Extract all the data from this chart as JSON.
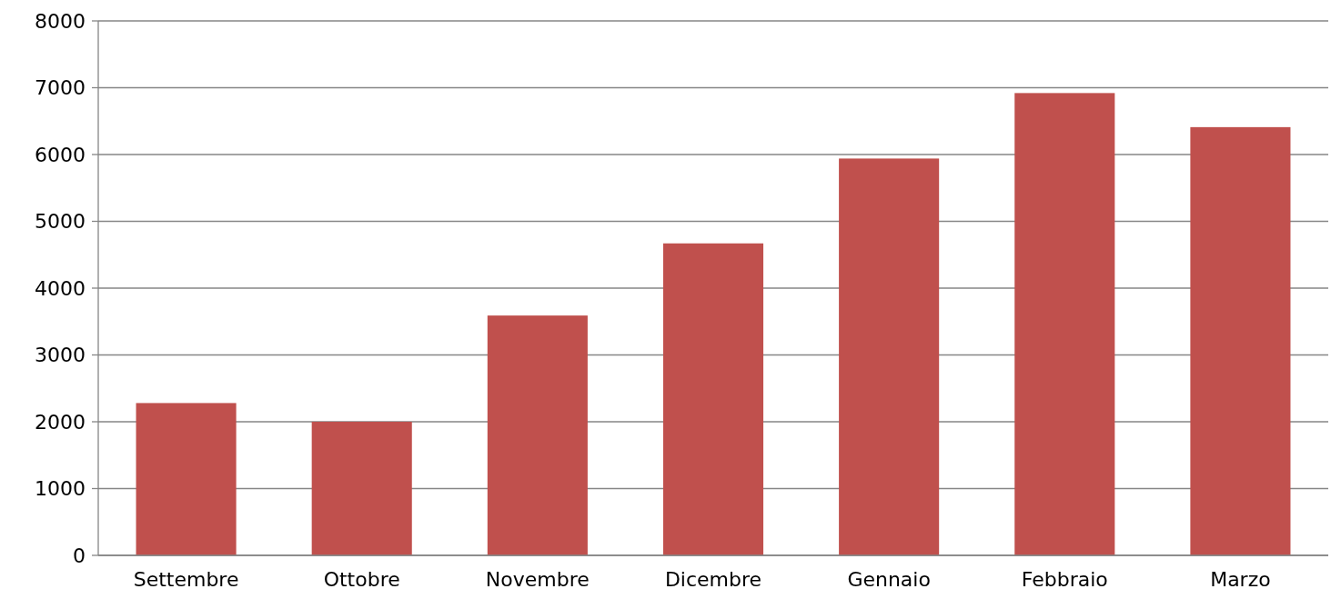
{
  "chart_data": {
    "type": "bar",
    "categories": [
      "Settembre",
      "Ottobre",
      "Novembre",
      "Dicembre",
      "Gennaio",
      "Febbraio",
      "Marzo"
    ],
    "values": [
      2280,
      2000,
      3590,
      4670,
      5940,
      6920,
      6410
    ],
    "color": "#c0504d",
    "ylim": [
      0,
      8000
    ],
    "yticks": [
      0,
      1000,
      2000,
      3000,
      4000,
      5000,
      6000,
      7000,
      8000
    ],
    "grid": "y"
  }
}
